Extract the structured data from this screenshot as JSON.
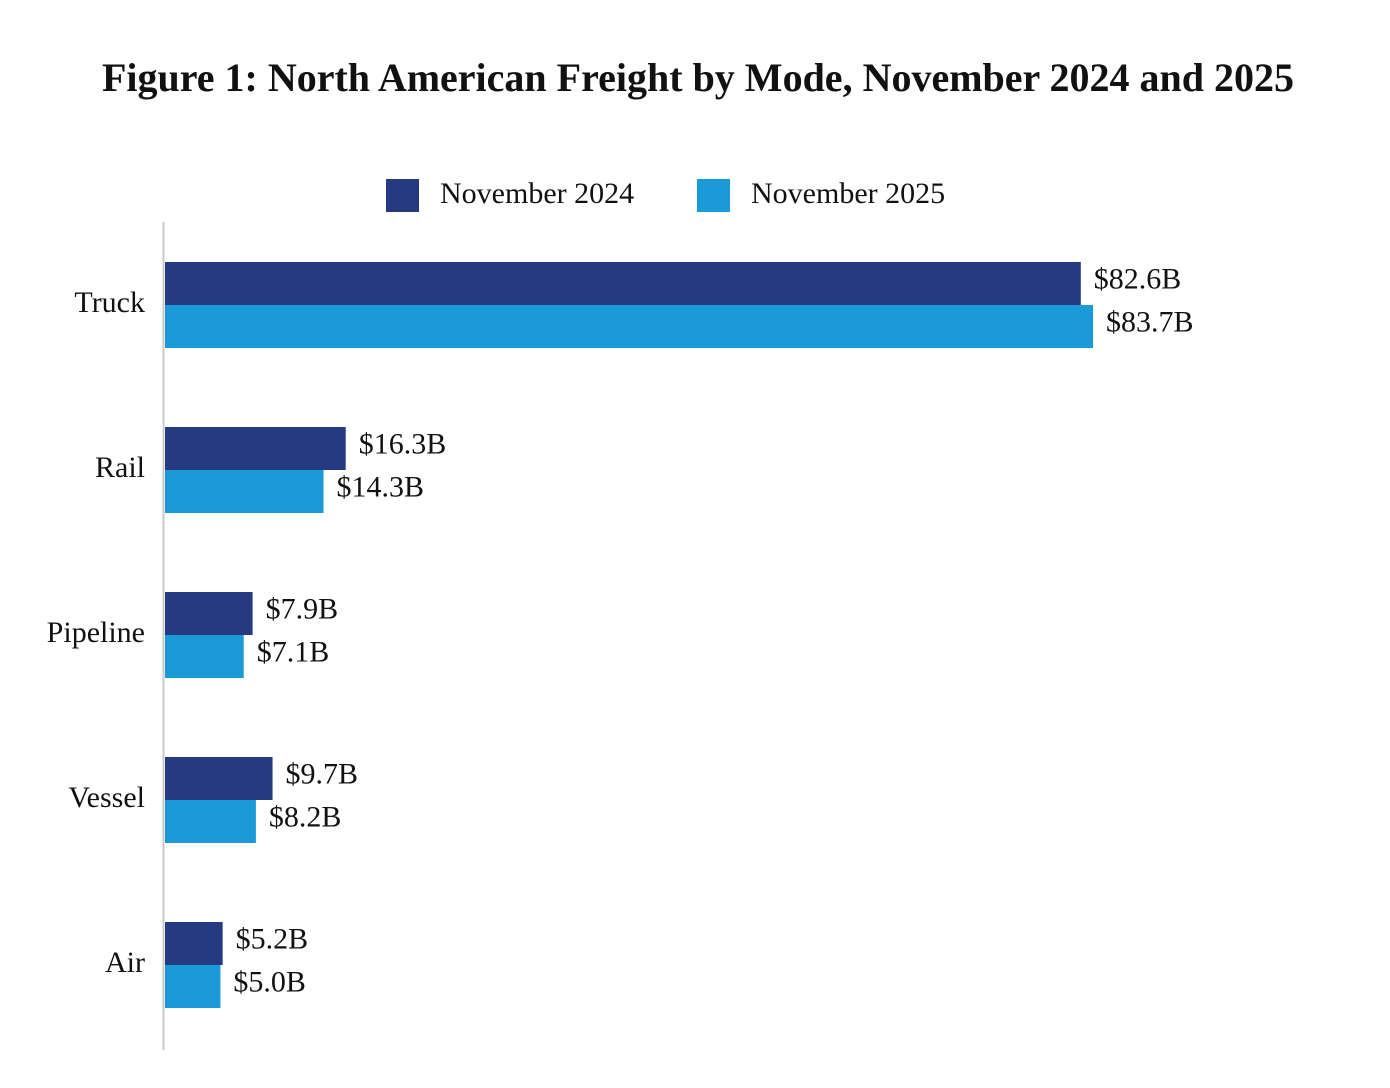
{
  "chart_data": {
    "type": "hbar",
    "title": "Figure 1: North American Freight by Mode, November 2024 and 2025",
    "categories": [
      "Truck",
      "Rail",
      "Pipeline",
      "Vessel",
      "Air"
    ],
    "series": [
      {
        "name": "November 2024",
        "color": "#253a80",
        "values": [
          82.6,
          16.3,
          7.9,
          9.7,
          5.2
        ],
        "value_labels": [
          "$82.6B",
          "$16.3B",
          "$7.9B",
          "$9.7B",
          "$5.2B"
        ]
      },
      {
        "name": "November 2025",
        "color": "#1a9bd7",
        "values": [
          83.7,
          14.3,
          7.1,
          8.2,
          5.0
        ],
        "value_labels": [
          "$83.7B",
          "$14.3B",
          "$7.1B",
          "$8.2B",
          "$5.0B"
        ]
      }
    ],
    "legend": "top"
  }
}
